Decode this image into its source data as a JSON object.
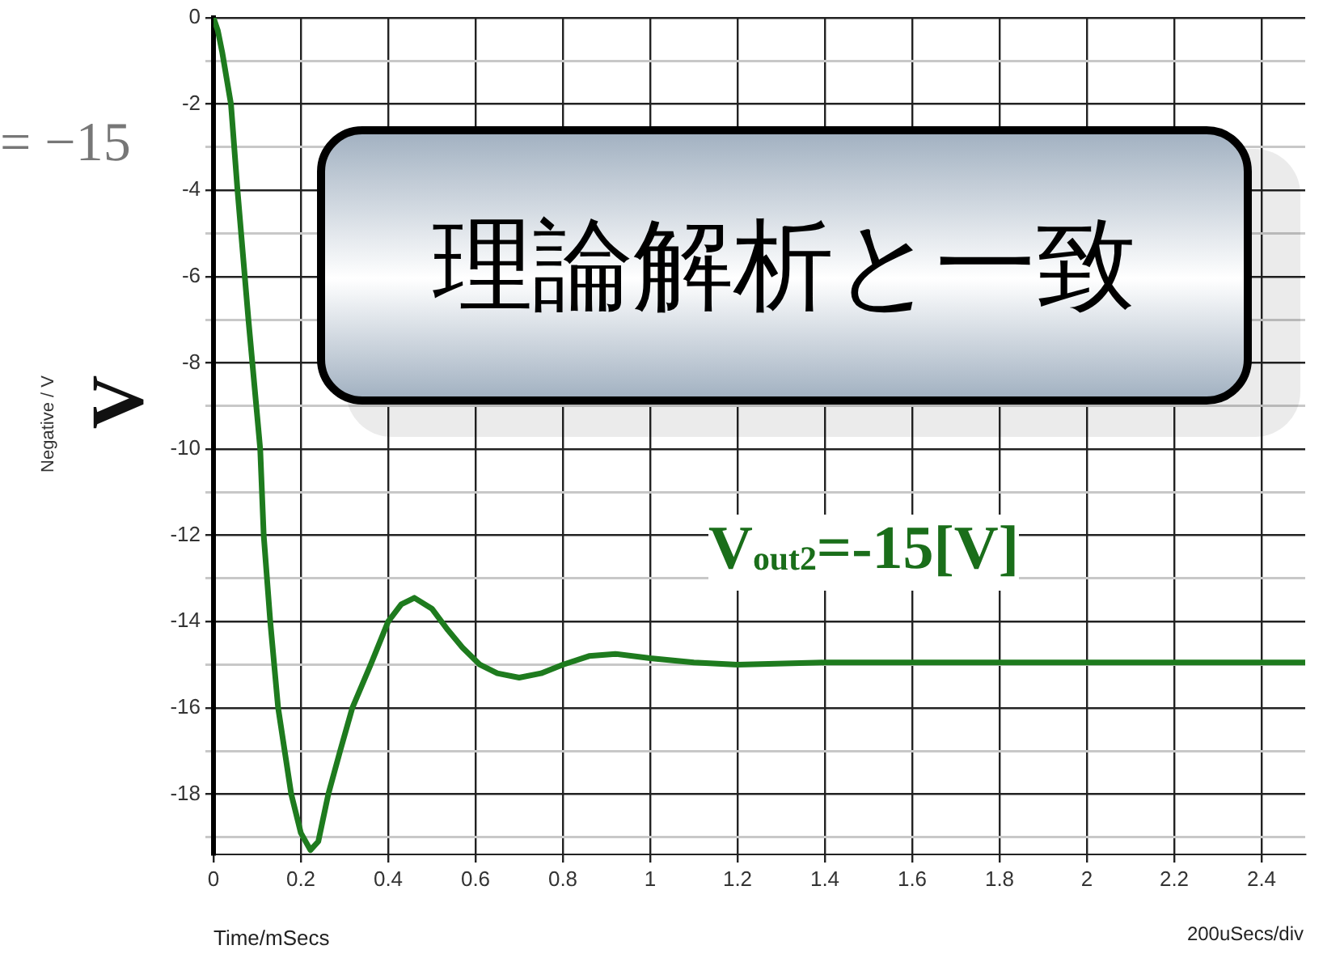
{
  "chart_data": {
    "type": "line",
    "xlabel": "Time/mSecs",
    "ylabel": "V",
    "annotations": [
      "= −15",
      "Negative / V",
      "理論解析と一致",
      "V$_{out2}$=-15[V]",
      "200uSecs/div"
    ],
    "x": [
      0,
      0.01,
      0.02,
      0.03,
      0.04,
      0.055,
      0.08,
      0.107,
      0.115,
      0.13,
      0.148,
      0.178,
      0.2,
      0.222,
      0.24,
      0.263,
      0.29,
      0.318,
      0.36,
      0.4,
      0.43,
      0.46,
      0.5,
      0.537,
      0.57,
      0.61,
      0.65,
      0.7,
      0.75,
      0.8,
      0.86,
      0.92,
      1.0,
      1.1,
      1.2,
      1.4,
      1.6,
      1.8,
      2.0,
      2.2,
      2.5
    ],
    "series": [
      {
        "color": "#1e7b1e",
        "values": [
          0,
          -0.3,
          -0.8,
          -1.4,
          -2,
          -4,
          -7,
          -10,
          -12,
          -14,
          -16,
          -18,
          -18.9,
          -19.3,
          -19.1,
          -18,
          -17,
          -16,
          -15,
          -14,
          -13.6,
          -13.45,
          -13.7,
          -14.2,
          -14.6,
          -15,
          -15.2,
          -15.3,
          -15.2,
          -15,
          -14.8,
          -14.75,
          -14.85,
          -14.95,
          -15,
          -14.95,
          -14.95,
          -14.95,
          -14.95,
          -14.95,
          -14.95
        ]
      }
    ],
    "xlim": [
      0,
      2.5
    ],
    "ylim": [
      -19.4,
      0
    ],
    "xticks": [
      0,
      0.2,
      0.4,
      0.6,
      0.8,
      1,
      1.2,
      1.4,
      1.6,
      1.8,
      2,
      2.2,
      2.4
    ],
    "yticks": [
      0,
      {
        "value": -1,
        "label": null
      },
      -2,
      {
        "value": -3,
        "label": null
      },
      -4,
      {
        "value": -5,
        "label": null
      },
      -6,
      {
        "value": -7,
        "label": null
      },
      -8,
      {
        "value": -9,
        "label": null
      },
      -10,
      {
        "value": -11,
        "label": null
      },
      -12,
      {
        "value": -13,
        "label": null
      },
      -14,
      {
        "value": -15,
        "label": null
      },
      -16,
      {
        "value": -17,
        "label": null
      },
      -18,
      {
        "value": -19,
        "label": null
      }
    ],
    "grid": true,
    "legend": false,
    "marker": "none",
    "line_style": "solid"
  }
}
